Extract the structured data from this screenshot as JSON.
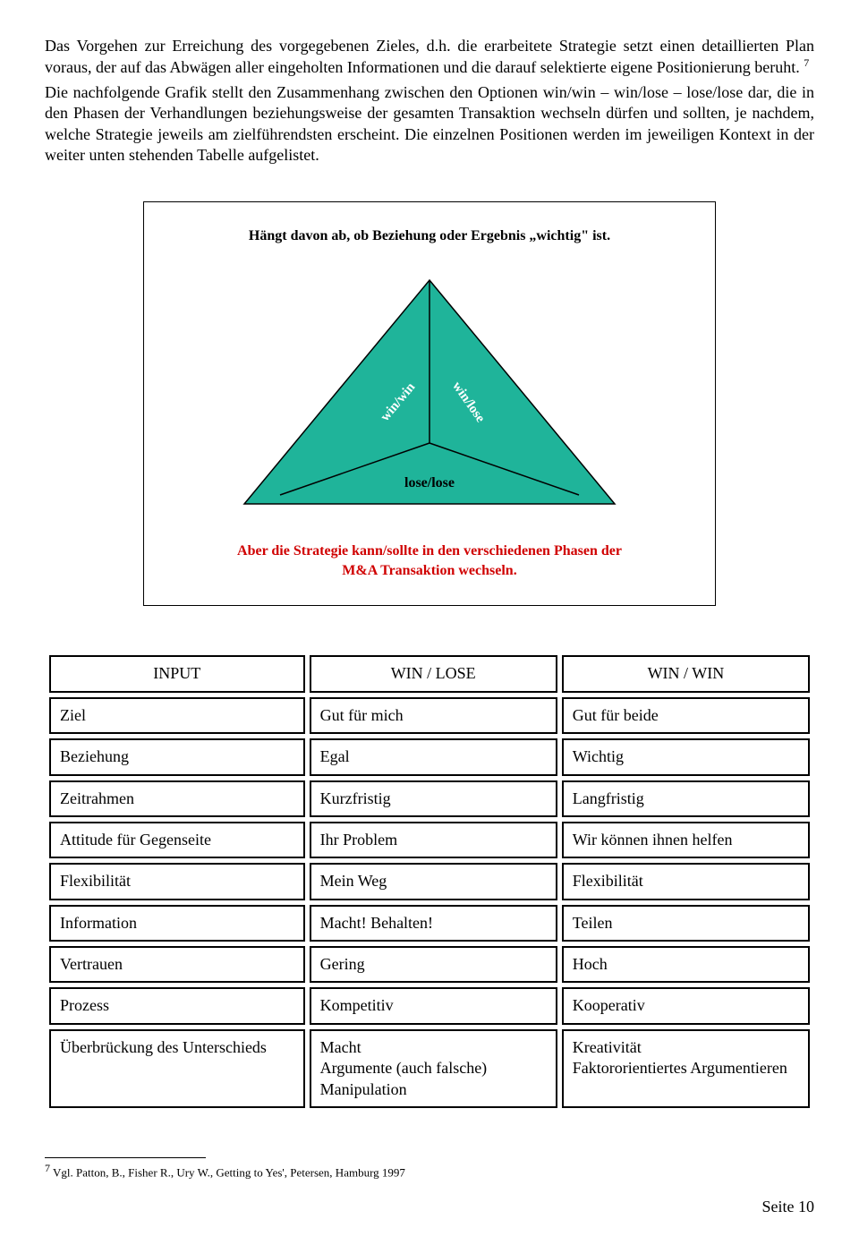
{
  "para1_a": "Das Vorgehen zur Erreichung des vorgegebenen Zieles, d.h. die erarbeitete Strategie setzt einen detaillierten Plan voraus, der auf das Abwägen aller eingeholten Informationen und die darauf selektierte eigene Positionierung beruht.",
  "para1_sup": "7",
  "para2": "Die nachfolgende Grafik stellt den Zusammenhang zwischen den Optionen win/win – win/lose – lose/lose dar, die in den Phasen der Verhandlungen beziehungsweise der gesamten Transaktion wechseln dürfen und sollten, je nachdem, welche Strategie jeweils am zielführendsten erscheint. Die einzelnen Positionen werden im jeweiligen Kontext in der weiter unten stehenden Tabelle aufgelistet.",
  "diagram": {
    "top_caption": "Hängt davon ab, ob Beziehung oder Ergebnis „wichtig\" ist.",
    "label_winwin": "win/win",
    "label_winlose": "win/lose",
    "label_loselose": "lose/lose",
    "bottom_caption_l1": "Aber die Strategie kann/sollte in den verschiedenen Phasen der",
    "bottom_caption_l2": "M&A Transaktion wechseln.",
    "fill_color": "#1fb49a",
    "stroke_color": "#000000",
    "inner_line_color": "#000000"
  },
  "table": {
    "headers": {
      "c0": "INPUT",
      "c1": "WIN / LOSE",
      "c2": "WIN / WIN"
    },
    "rows": [
      {
        "c0": "Ziel",
        "c1": "Gut für mich",
        "c2": "Gut für beide"
      },
      {
        "c0": "Beziehung",
        "c1": "Egal",
        "c2": "Wichtig"
      },
      {
        "c0": "Zeitrahmen",
        "c1": "Kurzfristig",
        "c2": "Langfristig"
      },
      {
        "c0": "Attitude für Gegenseite",
        "c1": "Ihr Problem",
        "c2": "Wir können ihnen helfen"
      },
      {
        "c0": "Flexibilität",
        "c1": "Mein Weg",
        "c2": "Flexibilität"
      },
      {
        "c0": "Information",
        "c1": "Macht! Behalten!",
        "c2": "Teilen"
      },
      {
        "c0": "Vertrauen",
        "c1": "Gering",
        "c2": "Hoch"
      },
      {
        "c0": "Prozess",
        "c1": "Kompetitiv",
        "c2": "Kooperativ"
      },
      {
        "c0": "Überbrückung des Unterschieds",
        "c1": "Macht\nArgumente (auch falsche)\nManipulation",
        "c2": "Kreativität\nFaktororientiertes Argumentieren"
      }
    ]
  },
  "footnote": {
    "marker": "7",
    "text": " Vgl. Patton, B., Fisher R., Ury W., Getting to Yes', Petersen, Hamburg  1997"
  },
  "page_number": "Seite 10"
}
